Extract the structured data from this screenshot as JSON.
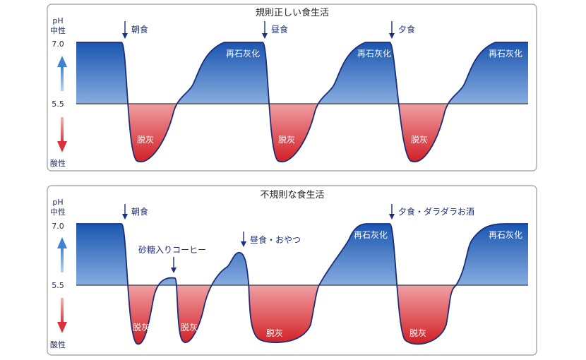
{
  "colors": {
    "remineral": "#1f5fb8",
    "demineral": "#d8232a",
    "curve": "#1a2e7a",
    "up_arrow": "#4f8ed6",
    "down_arrow": "#d8404a"
  },
  "panel_top": {
    "title": "規則正しい食生活",
    "ph": "pH",
    "neutral": "中性",
    "ph70": "7.0",
    "ph55": "5.5",
    "acidic": "酸性",
    "meal1": "朝食",
    "meal2": "昼食",
    "meal3": "夕食",
    "remin": "再石灰化",
    "demin": "脱灰"
  },
  "panel_bottom": {
    "title": "不規則な食生活",
    "ph": "pH",
    "neutral": "中性",
    "ph70": "7.0",
    "ph55": "5.5",
    "acidic": "酸性",
    "meal1": "朝食",
    "meal2": "砂糖入りコーヒー",
    "meal3": "昼食・おやつ",
    "meal4": "夕食・ダラダラお酒",
    "remin": "再石灰化",
    "demin": "脱灰"
  }
}
